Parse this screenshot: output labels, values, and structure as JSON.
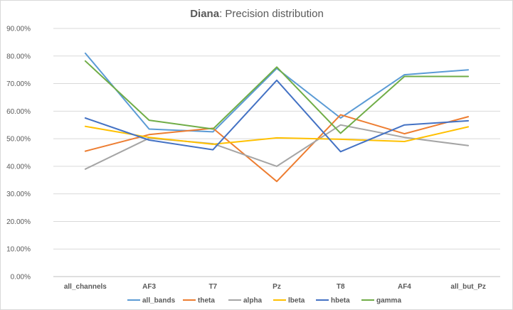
{
  "title": {
    "bold_part": "Diana",
    "rest_part": ": Precision distribution"
  },
  "colors": {
    "all_bands": "#5b9bd5",
    "theta": "#ed7d31",
    "alpha": "#a5a5a5",
    "lbeta": "#ffc000",
    "hbeta": "#4472c4",
    "gamma": "#70ad47",
    "grid": "#d9d9d9",
    "axis": "#bfbfbf"
  },
  "chart_data": {
    "type": "line",
    "title": "Diana: Precision distribution",
    "categories": [
      "all_channels",
      "AF3",
      "T7",
      "Pz",
      "T8",
      "AF4",
      "all_but_Pz"
    ],
    "y_ticks": [
      "0.00%",
      "10.00%",
      "20.00%",
      "30.00%",
      "40.00%",
      "50.00%",
      "60.00%",
      "70.00%",
      "80.00%",
      "90.00%"
    ],
    "ylim": [
      0,
      90
    ],
    "y_unit": "%",
    "grid": true,
    "legend_position": "bottom",
    "series": [
      {
        "key": "all_bands",
        "name": "all_bands",
        "values": [
          81.0,
          53.5,
          52.5,
          75.5,
          57.5,
          73.2,
          75.0
        ]
      },
      {
        "key": "theta",
        "name": "theta",
        "values": [
          45.5,
          51.5,
          53.8,
          34.5,
          58.7,
          51.8,
          58.0
        ]
      },
      {
        "key": "alpha",
        "name": "alpha",
        "values": [
          39.0,
          50.2,
          48.2,
          40.0,
          55.0,
          50.5,
          47.5
        ]
      },
      {
        "key": "lbeta",
        "name": "lbeta",
        "values": [
          54.5,
          50.5,
          48.0,
          50.3,
          49.8,
          49.0,
          54.3
        ]
      },
      {
        "key": "hbeta",
        "name": "hbeta",
        "values": [
          57.5,
          49.5,
          46.0,
          71.2,
          45.3,
          55.0,
          56.5
        ]
      },
      {
        "key": "gamma",
        "name": "gamma",
        "values": [
          78.2,
          56.7,
          53.5,
          76.0,
          52.0,
          72.6,
          72.6
        ]
      }
    ]
  }
}
